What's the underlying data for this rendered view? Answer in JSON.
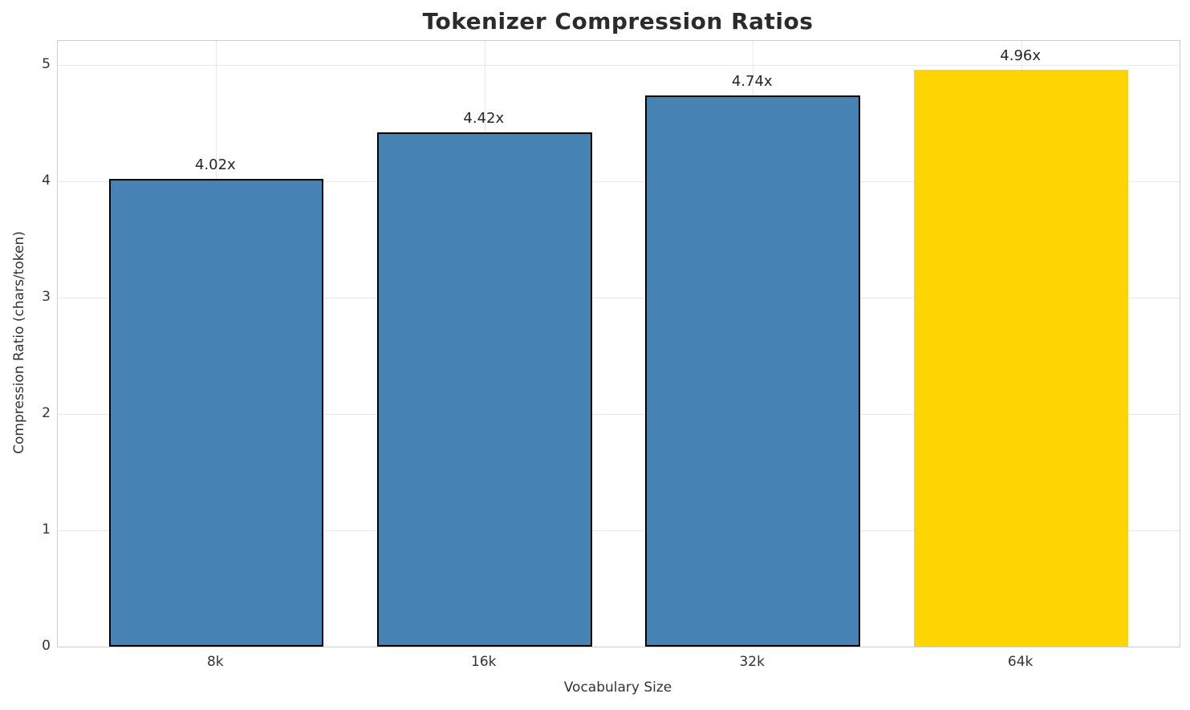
{
  "chart_data": {
    "type": "bar",
    "title": "Tokenizer Compression Ratios",
    "xlabel": "Vocabulary Size",
    "ylabel": "Compression Ratio (chars/token)",
    "categories": [
      "8k",
      "16k",
      "32k",
      "64k"
    ],
    "values": [
      4.02,
      4.42,
      4.74,
      4.96
    ],
    "bar_labels": [
      "4.02x",
      "4.42x",
      "4.74x",
      "4.96x"
    ],
    "yticks": [
      "0",
      "1",
      "2",
      "3",
      "4",
      "5"
    ],
    "ytick_values": [
      0,
      1,
      2,
      3,
      4,
      5
    ],
    "ylim": [
      0,
      5.21
    ],
    "grid": true,
    "legend_position": "none",
    "highlight_index": 3,
    "colors": {
      "bar_default": "#4682B4",
      "bar_highlight": "#FFD500",
      "bar_edge": "#000000",
      "grid": "#e9e9e9",
      "spine": "#cfcfcf",
      "text": "#262626"
    }
  }
}
